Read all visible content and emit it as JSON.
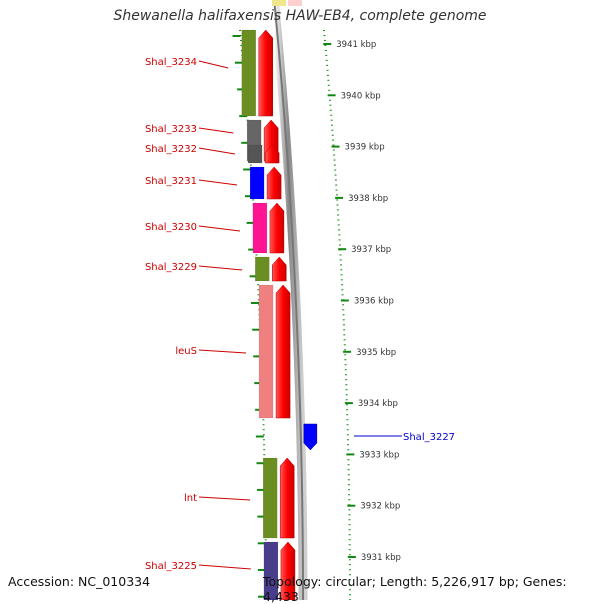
{
  "title": "Shewanella halifaxensis HAW-EB4, complete genome",
  "footer": {
    "accession": "Accession: NC_010334",
    "summary": "Topology: circular; Length: 5,226,917 bp; Genes: 4,433"
  },
  "ruler": [
    {
      "label": "3941 kbp",
      "kbp": 3941
    },
    {
      "label": "3940 kbp",
      "kbp": 3940
    },
    {
      "label": "3939 kbp",
      "kbp": 3939
    },
    {
      "label": "3938 kbp",
      "kbp": 3938
    },
    {
      "label": "3937 kbp",
      "kbp": 3937
    },
    {
      "label": "3936 kbp",
      "kbp": 3936
    },
    {
      "label": "3935 kbp",
      "kbp": 3935
    },
    {
      "label": "3934 kbp",
      "kbp": 3934
    },
    {
      "label": "3933 kbp",
      "kbp": 3933
    },
    {
      "label": "3932 kbp",
      "kbp": 3932
    },
    {
      "label": "3931 kbp",
      "kbp": 3931
    }
  ],
  "genes": [
    {
      "label": "Shal_3234",
      "color": "#6b8e23",
      "strand": "reverse"
    },
    {
      "label": "Shal_3233",
      "color": "#666666",
      "strand": "reverse"
    },
    {
      "label": "Shal_3232",
      "color": "#555555",
      "strand": "reverse"
    },
    {
      "label": "Shal_3231",
      "color": "#0000ff",
      "strand": "reverse"
    },
    {
      "label": "Shal_3230",
      "color": "#ff1493",
      "strand": "reverse"
    },
    {
      "label": "Shal_3229",
      "color": "#6b8e23",
      "strand": "reverse"
    },
    {
      "label": "leuS",
      "color": "#f08080",
      "strand": "reverse"
    },
    {
      "label": "Shal_3227",
      "color": "#0000ff",
      "strand": "forward"
    },
    {
      "label": "lnt",
      "color": "#6b8e23",
      "strand": "reverse"
    },
    {
      "label": "Shal_3225",
      "color": "#483d8b",
      "strand": "reverse"
    }
  ]
}
